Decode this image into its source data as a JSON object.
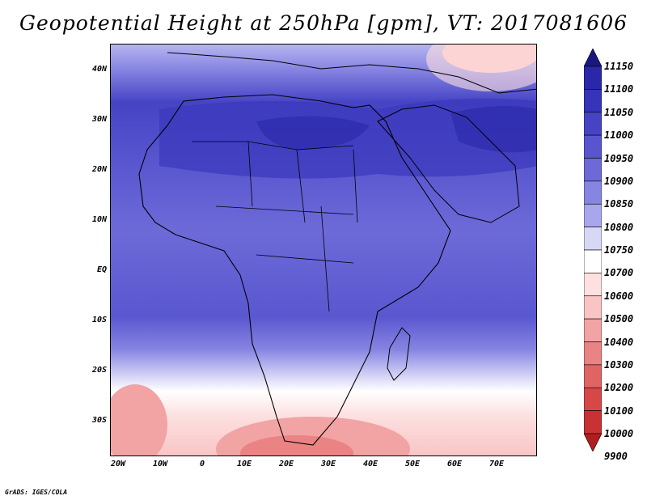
{
  "title": "Geopotential Height at 250hPa [gpm], VT: 2017081606",
  "footer": "GrADS: IGES/COLA",
  "lat_labels": [
    "40N",
    "30N",
    "20N",
    "10N",
    "EQ",
    "10S",
    "20S",
    "30S"
  ],
  "lon_labels": [
    "20W",
    "10W",
    "0",
    "10E",
    "20E",
    "30E",
    "40E",
    "50E",
    "60E",
    "70E"
  ],
  "colorbar": {
    "values": [
      "11150",
      "11100",
      "11050",
      "11000",
      "10950",
      "10900",
      "10850",
      "10800",
      "10750",
      "10700",
      "10600",
      "10500",
      "10400",
      "10300",
      "10200",
      "10100",
      "10000",
      "9900"
    ],
    "colors": [
      "#1a1880",
      "#2a28a8",
      "#3634b8",
      "#4644c4",
      "#5855cf",
      "#6d6ad8",
      "#8785e2",
      "#a8a6ec",
      "#d8d8f6",
      "#ffffff",
      "#fde0e0",
      "#f9c4c4",
      "#f2a3a3",
      "#ea8383",
      "#e06464",
      "#d64848",
      "#c83232",
      "#b01e1e"
    ]
  }
}
